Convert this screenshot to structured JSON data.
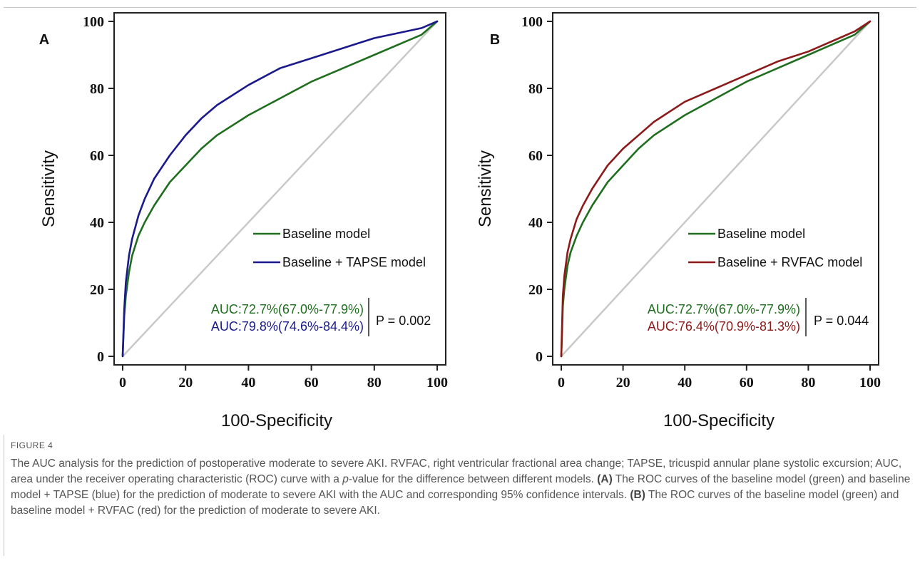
{
  "chart_data": [
    {
      "type": "line",
      "panel": "A",
      "xlabel": "100-Specificity",
      "ylabel": "Sensitivity",
      "xlim": [
        0,
        100
      ],
      "ylim": [
        0,
        100
      ],
      "x_ticks": [
        "0",
        "20",
        "40",
        "60",
        "80",
        "100"
      ],
      "y_ticks": [
        "0",
        "20",
        "40",
        "60",
        "80",
        "100"
      ],
      "legend_placement": "center-right",
      "series": [
        {
          "name": "Baseline model",
          "color": "#1f6e1f",
          "x": [
            0,
            0.5,
            1,
            2,
            3,
            5,
            7,
            10,
            15,
            20,
            25,
            30,
            40,
            50,
            60,
            70,
            80,
            90,
            95,
            100
          ],
          "y": [
            0,
            12,
            18,
            25,
            30,
            36,
            40,
            45,
            52,
            57,
            62,
            66,
            72,
            77,
            82,
            86,
            90,
            94,
            96,
            100
          ]
        },
        {
          "name": "Baseline + TAPSE model",
          "color": "#1a1a8c",
          "x": [
            0,
            0.5,
            1,
            2,
            3,
            5,
            7,
            10,
            15,
            20,
            25,
            30,
            40,
            50,
            60,
            70,
            80,
            90,
            95,
            100
          ],
          "y": [
            0,
            14,
            22,
            30,
            35,
            42,
            47,
            53,
            60,
            66,
            71,
            75,
            81,
            86,
            89,
            92,
            95,
            97,
            98,
            100
          ]
        },
        {
          "name": "",
          "color": "#c8c8c8",
          "x": [
            0,
            100
          ],
          "y": [
            0,
            100
          ]
        }
      ],
      "annotations": {
        "auc_1": "AUC:72.7%(67.0%-77.9%)",
        "auc_2": "AUC:79.8%(74.6%-84.4%)",
        "p_value": "P = 0.002"
      }
    },
    {
      "type": "line",
      "panel": "B",
      "xlabel": "100-Specificity",
      "ylabel": "Sensitivity",
      "xlim": [
        0,
        100
      ],
      "ylim": [
        0,
        100
      ],
      "x_ticks": [
        "0",
        "20",
        "40",
        "60",
        "80",
        "100"
      ],
      "y_ticks": [
        "0",
        "20",
        "40",
        "60",
        "80",
        "100"
      ],
      "legend_placement": "center-right",
      "series": [
        {
          "name": "Baseline model",
          "color": "#1f6e1f",
          "x": [
            0,
            0.5,
            1,
            2,
            3,
            5,
            7,
            10,
            15,
            20,
            25,
            30,
            40,
            50,
            60,
            70,
            80,
            90,
            95,
            100
          ],
          "y": [
            0,
            15,
            20,
            27,
            31,
            36,
            40,
            45,
            52,
            57,
            62,
            66,
            72,
            77,
            82,
            86,
            90,
            94,
            96,
            100
          ]
        },
        {
          "name": "Baseline + RVFAC model",
          "color": "#8c1a1a",
          "x": [
            0,
            0.5,
            1,
            2,
            3,
            5,
            7,
            10,
            15,
            20,
            25,
            30,
            40,
            50,
            60,
            70,
            80,
            90,
            95,
            100
          ],
          "y": [
            0,
            18,
            24,
            31,
            35,
            41,
            45,
            50,
            57,
            62,
            66,
            70,
            76,
            80,
            84,
            88,
            91,
            95,
            97,
            100
          ]
        },
        {
          "name": "",
          "color": "#c8c8c8",
          "x": [
            0,
            100
          ],
          "y": [
            0,
            100
          ]
        }
      ],
      "annotations": {
        "auc_1": "AUC:72.7%(67.0%-77.9%)",
        "auc_2": "AUC:76.4%(70.9%-81.3%)",
        "p_value": "P = 0.044"
      }
    }
  ],
  "caption": {
    "label": "FIGURE 4",
    "text_1": "The AUC analysis for the prediction of postoperative moderate to severe AKI. RVFAC, right ventricular fractional area change; TAPSE, tricuspid annular plane systolic excursion; AUC, area under the receiver operating characteristic (ROC) curve with a ",
    "p_italic": "p",
    "text_2": "-value for the difference between different models. ",
    "panel_a_label": "(A)",
    "panel_a_text": " The ROC curves of the baseline model (green) and baseline model + TAPSE (blue) for the prediction of moderate to severe AKI with the AUC and corresponding 95% confidence intervals. ",
    "panel_b_label": "(B)",
    "panel_b_text": " The ROC curves of the baseline model (green) and baseline model + RVFAC (red) for the prediction of moderate to severe AKI."
  }
}
